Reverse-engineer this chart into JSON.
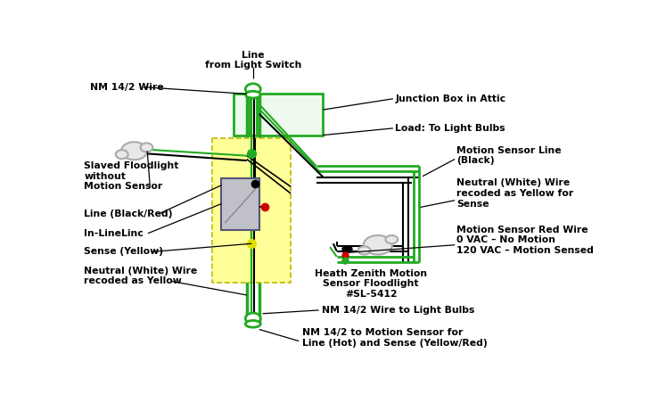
{
  "bg_color": "#ffffff",
  "figsize": [
    7.28,
    4.61
  ],
  "dpi": 100,
  "labels": {
    "line_from_switch": "Line\nfrom Light Switch",
    "nm_wire": "NM 14/2 Wire",
    "junction_box": "Junction Box in Attic",
    "load_bulbs": "Load: To Light Bulbs",
    "slaved_floodlight": "Slaved Floodlight\nwithout\nMotion Sensor",
    "line_black_red": "Line (Black/Red)",
    "in_line_linc": "In-LineLinc",
    "sense_yellow": "Sense (Yellow)",
    "neutral_white": "Neutral (White) Wire\nrecoded as Yellow",
    "motion_sensor_line": "Motion Sensor Line\n(Black)",
    "neutral_white_sense": "Neutral (White) Wire\nrecoded as Yellow for\nSense",
    "motion_sensor_red": "Motion Sensor Red Wire\n0 VAC – No Motion\n120 VAC – Motion Sensed",
    "heath_zenith": "Heath Zenith Motion\nSensor Floodlight\n#SL-5412",
    "nm_wire_bulbs": "NM 14/2 Wire to Light Bulbs",
    "nm_wire_motion": "NM 14/2 to Motion Sensor for\nLine (Hot) and Sense (Yellow/Red)"
  },
  "colors": {
    "green": "#22aa22",
    "black": "#000000",
    "yellow": "#dddd00",
    "red": "#cc0000",
    "gray": "#aaaaaa",
    "box_yellow_fill": "#ffff99",
    "box_yellow_border": "#bbbb00",
    "device_fill": "#c0c0c8",
    "device_border": "#555577"
  }
}
